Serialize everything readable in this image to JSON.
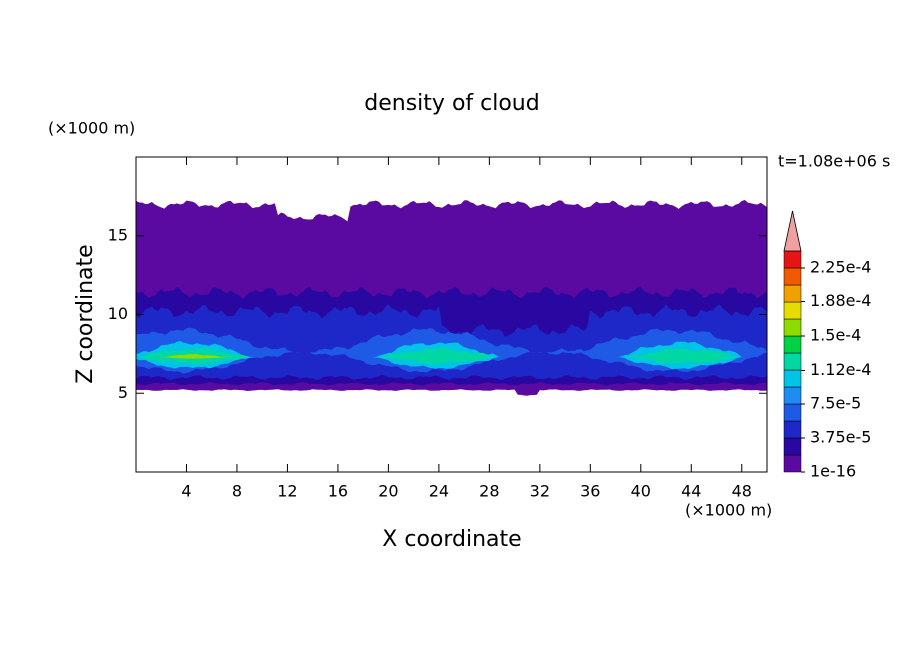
{
  "chart_data": {
    "type": "contour",
    "title": "density of cloud",
    "x_label": "X coordinate",
    "y_label": "Z coordinate",
    "x_unit": "(×1000 m)",
    "y_unit": "(×1000 m)",
    "annotation": "t=1.08e+06 s",
    "xlim": [
      0,
      50
    ],
    "ylim": [
      0,
      20
    ],
    "xticks": [
      4,
      8,
      12,
      16,
      20,
      24,
      28,
      32,
      36,
      40,
      44,
      48
    ],
    "yticks": [
      5,
      10,
      15
    ],
    "colorbar": {
      "clim": [
        1e-16,
        0.00024375
      ],
      "ticks": [
        1e-16,
        {
          "value": 3.75e-05,
          "label": "3.75e-5"
        },
        {
          "value": 7.5e-05,
          "label": "7.5e-5"
        },
        {
          "value": 0.000112,
          "label": "1.12e-4"
        },
        {
          "value": 0.00015,
          "label": "1.5e-4"
        },
        {
          "value": 0.000188,
          "label": "1.88e-4"
        },
        {
          "value": 0.000225,
          "label": "2.25e-4"
        }
      ],
      "colors": [
        "#5a0aa0",
        "#2808a0",
        "#1e28c8",
        "#1e5ae6",
        "#1e8cf0",
        "#00c3e6",
        "#00d7a5",
        "#00d246",
        "#8cdc00",
        "#e6dc00",
        "#f0a000",
        "#f05a00",
        "#e61414"
      ],
      "extend_color": "#f0a0a0"
    }
  }
}
